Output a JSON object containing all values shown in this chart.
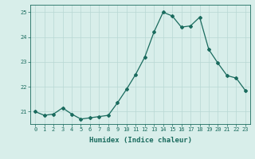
{
  "x": [
    0,
    1,
    2,
    3,
    4,
    5,
    6,
    7,
    8,
    9,
    10,
    11,
    12,
    13,
    14,
    15,
    16,
    17,
    18,
    19,
    20,
    21,
    22,
    23
  ],
  "y": [
    21.0,
    20.85,
    20.9,
    21.15,
    20.9,
    20.7,
    20.75,
    20.8,
    20.85,
    21.35,
    21.9,
    22.5,
    23.2,
    24.2,
    25.0,
    24.85,
    24.4,
    24.45,
    24.8,
    23.5,
    22.95,
    22.45,
    22.35,
    21.85
  ],
  "xlim": [
    -0.5,
    23.5
  ],
  "ylim": [
    20.5,
    25.3
  ],
  "yticks": [
    21,
    22,
    23,
    24,
    25
  ],
  "xticks": [
    0,
    1,
    2,
    3,
    4,
    5,
    6,
    7,
    8,
    9,
    10,
    11,
    12,
    13,
    14,
    15,
    16,
    17,
    18,
    19,
    20,
    21,
    22,
    23
  ],
  "xlabel": "Humidex (Indice chaleur)",
  "line_color": "#1a6b5e",
  "bg_color": "#d8eeea",
  "grid_color": "#b8d8d4",
  "axis_color": "#1a6b5e",
  "label_fontsize": 6.5,
  "tick_fontsize": 5.0
}
